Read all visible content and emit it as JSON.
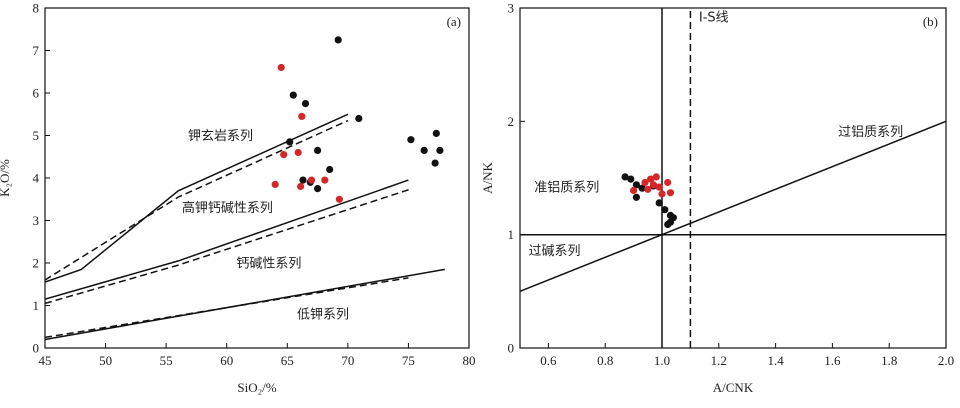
{
  "chart_data": [
    {
      "type": "scatter",
      "panel": "(a)",
      "xlabel": "SiO₂/%",
      "ylabel": "K₂O/%",
      "xlim": [
        45,
        80
      ],
      "ylim": [
        0,
        8
      ],
      "xticks": [
        45,
        50,
        55,
        60,
        65,
        70,
        75,
        80
      ],
      "yticks": [
        0,
        1,
        2,
        3,
        4,
        5,
        6,
        7,
        8
      ],
      "boundaries": [
        {
          "name": "solid-upper",
          "style": "solid",
          "points": [
            [
              45,
              1.55
            ],
            [
              48,
              1.85
            ],
            [
              56,
              3.7
            ],
            [
              70,
              5.5
            ]
          ]
        },
        {
          "name": "dashed-upper",
          "style": "dashed",
          "points": [
            [
              45,
              1.6
            ],
            [
              56,
              3.55
            ],
            [
              70,
              5.35
            ]
          ]
        },
        {
          "name": "solid-middle",
          "style": "solid",
          "points": [
            [
              45,
              1.15
            ],
            [
              56,
              2.05
            ],
            [
              75,
              3.95
            ]
          ]
        },
        {
          "name": "dashed-middle",
          "style": "dashed",
          "points": [
            [
              45,
              1.05
            ],
            [
              56,
              1.95
            ],
            [
              75.3,
              3.75
            ]
          ]
        },
        {
          "name": "solid-lower",
          "style": "solid",
          "points": [
            [
              45,
              0.2
            ],
            [
              78,
              1.85
            ]
          ]
        },
        {
          "name": "dashed-lower",
          "style": "dashed",
          "points": [
            [
              45,
              0.25
            ],
            [
              75,
              1.65
            ]
          ]
        }
      ],
      "region_labels": [
        {
          "text": "钾玄岩系列",
          "x": 56.8,
          "y": 4.9
        },
        {
          "text": "高钾钙碱性系列",
          "x": 56.3,
          "y": 3.2
        },
        {
          "text": "钙碱性系列",
          "x": 60.8,
          "y": 1.9
        },
        {
          "text": "低钾系列",
          "x": 65.8,
          "y": 0.7
        }
      ],
      "series": [
        {
          "name": "black",
          "color": "#111111",
          "points": [
            [
              69.2,
              7.25
            ],
            [
              65.5,
              5.95
            ],
            [
              66.5,
              5.75
            ],
            [
              70.9,
              5.4
            ],
            [
              65.2,
              4.85
            ],
            [
              67.5,
              4.65
            ],
            [
              68.5,
              4.2
            ],
            [
              66.3,
              3.95
            ],
            [
              66.9,
              3.9
            ],
            [
              67.5,
              3.75
            ],
            [
              75.2,
              4.9
            ],
            [
              77.3,
              5.05
            ],
            [
              76.3,
              4.65
            ],
            [
              77.6,
              4.65
            ],
            [
              77.2,
              4.35
            ]
          ]
        },
        {
          "name": "red",
          "color": "#d62728",
          "points": [
            [
              64.5,
              6.6
            ],
            [
              66.2,
              5.45
            ],
            [
              64.7,
              4.55
            ],
            [
              65.9,
              4.6
            ],
            [
              64.0,
              3.85
            ],
            [
              66.1,
              3.8
            ],
            [
              67.0,
              3.95
            ],
            [
              68.1,
              3.95
            ],
            [
              69.3,
              3.5
            ]
          ]
        }
      ]
    },
    {
      "type": "scatter",
      "panel": "(b)",
      "xlabel": "A/CNK",
      "ylabel": "A/NK",
      "xlim": [
        0.5,
        2.0
      ],
      "ylim": [
        0,
        3
      ],
      "xticks": [
        "0.6",
        "0.8",
        "1.0",
        "1.2",
        "1.4",
        "1.6",
        "1.8",
        "2.0"
      ],
      "yticks": [
        "0",
        "1",
        "2",
        "3"
      ],
      "reference_lines": [
        {
          "name": "vertical-1.0",
          "style": "solid",
          "points": [
            [
              1.0,
              0
            ],
            [
              1.0,
              3
            ]
          ]
        },
        {
          "name": "horizontal-1.0",
          "style": "solid",
          "points": [
            [
              0.5,
              1.0
            ],
            [
              2.0,
              1.0
            ]
          ]
        },
        {
          "name": "diagonal",
          "style": "solid",
          "points": [
            [
              0.5,
              0.5
            ],
            [
              2.0,
              2.0
            ]
          ]
        },
        {
          "name": "i-s-line",
          "style": "dashed",
          "points": [
            [
              1.1,
              0
            ],
            [
              1.1,
              3
            ]
          ]
        }
      ],
      "region_labels": [
        {
          "text": "I-S线",
          "x": 1.13,
          "y": 2.88
        },
        {
          "text": "过铝质系列",
          "x": 1.62,
          "y": 1.87
        },
        {
          "text": "准铝质系列",
          "x": 0.55,
          "y": 1.38
        },
        {
          "text": "过碱系列",
          "x": 0.53,
          "y": 0.82
        }
      ],
      "series": [
        {
          "name": "black",
          "color": "#111111",
          "points": [
            [
              0.87,
              1.51
            ],
            [
              0.89,
              1.49
            ],
            [
              0.91,
              1.44
            ],
            [
              0.93,
              1.41
            ],
            [
              0.91,
              1.33
            ],
            [
              0.99,
              1.28
            ],
            [
              1.01,
              1.22
            ],
            [
              1.03,
              1.17
            ],
            [
              1.04,
              1.15
            ],
            [
              1.03,
              1.11
            ],
            [
              1.02,
              1.09
            ],
            [
              0.97,
              1.43
            ]
          ]
        },
        {
          "name": "red",
          "color": "#d62728",
          "points": [
            [
              0.9,
              1.39
            ],
            [
              0.94,
              1.46
            ],
            [
              0.96,
              1.49
            ],
            [
              0.98,
              1.51
            ],
            [
              0.97,
              1.44
            ],
            [
              0.95,
              1.4
            ],
            [
              1.0,
              1.36
            ],
            [
              1.03,
              1.37
            ],
            [
              1.02,
              1.46
            ],
            [
              0.99,
              1.42
            ]
          ]
        }
      ]
    }
  ]
}
